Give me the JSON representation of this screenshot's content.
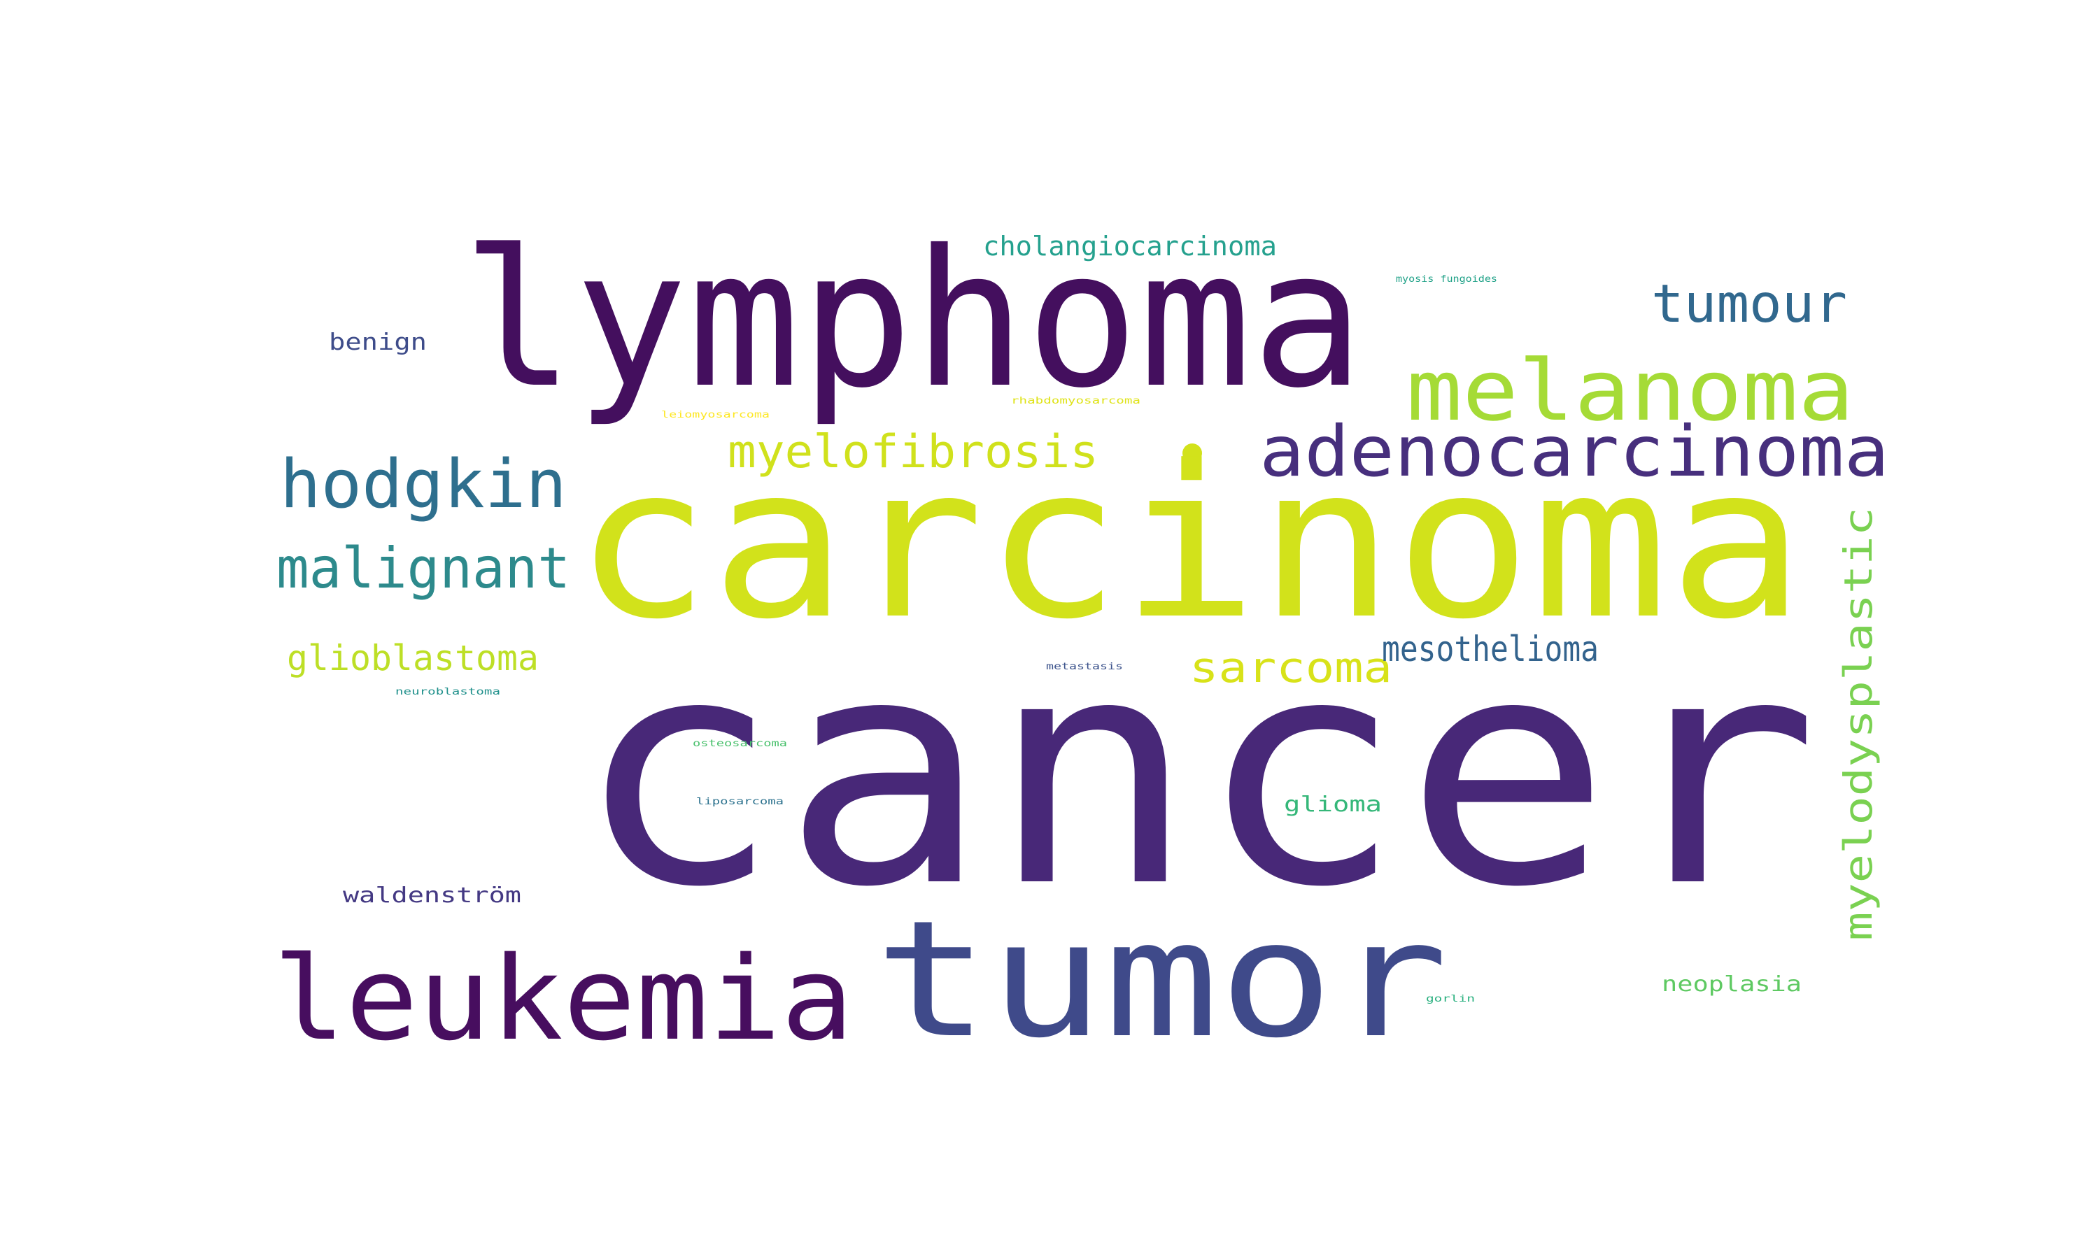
{
  "word_cloud": {
    "words": [
      {
        "text": "cancer",
        "color": "#482878"
      },
      {
        "text": "carcinoma",
        "color": "#d2e21b"
      },
      {
        "text": "lymphoma",
        "color": "#440f5e"
      },
      {
        "text": "tumor",
        "color": "#3f4a8a"
      },
      {
        "text": "leukemia",
        "color": "#470e5f"
      },
      {
        "text": "melanoma",
        "color": "#a5db36"
      },
      {
        "text": "adenocarcinoma",
        "color": "#472f7d"
      },
      {
        "text": "hodgkin",
        "color": "#2e6f8e"
      },
      {
        "text": "malignant",
        "color": "#2d8a8c"
      },
      {
        "text": "tumour",
        "color": "#31688e"
      },
      {
        "text": "myelofibrosis",
        "color": "#d0e11c"
      },
      {
        "text": "myelodysplastic",
        "color": "#7ad151"
      },
      {
        "text": "sarcoma",
        "color": "#d8e219"
      },
      {
        "text": "mesothelioma",
        "color": "#33638d"
      },
      {
        "text": "glioblastoma",
        "color": "#bddf26"
      },
      {
        "text": "cholangiocarcinoma",
        "color": "#25a18e"
      },
      {
        "text": "benign",
        "color": "#3e4c8a"
      },
      {
        "text": "waldenström",
        "color": "#443983"
      },
      {
        "text": "neoplasia",
        "color": "#5ec962"
      },
      {
        "text": "glioma",
        "color": "#35b779"
      },
      {
        "text": "myosis fungoides",
        "color": "#1fa187"
      },
      {
        "text": "rhabdomyosarcoma",
        "color": "#dfe318"
      },
      {
        "text": "leiomyosarcoma",
        "color": "#fde725"
      },
      {
        "text": "metastasis",
        "color": "#3b528b"
      },
      {
        "text": "neuroblastoma",
        "color": "#21918c"
      },
      {
        "text": "osteosarcoma",
        "color": "#4ac16d"
      },
      {
        "text": "liposarcoma",
        "color": "#2c728e"
      },
      {
        "text": "gorlin",
        "color": "#2ab07f"
      }
    ],
    "dot_color": "#d2e21b"
  }
}
